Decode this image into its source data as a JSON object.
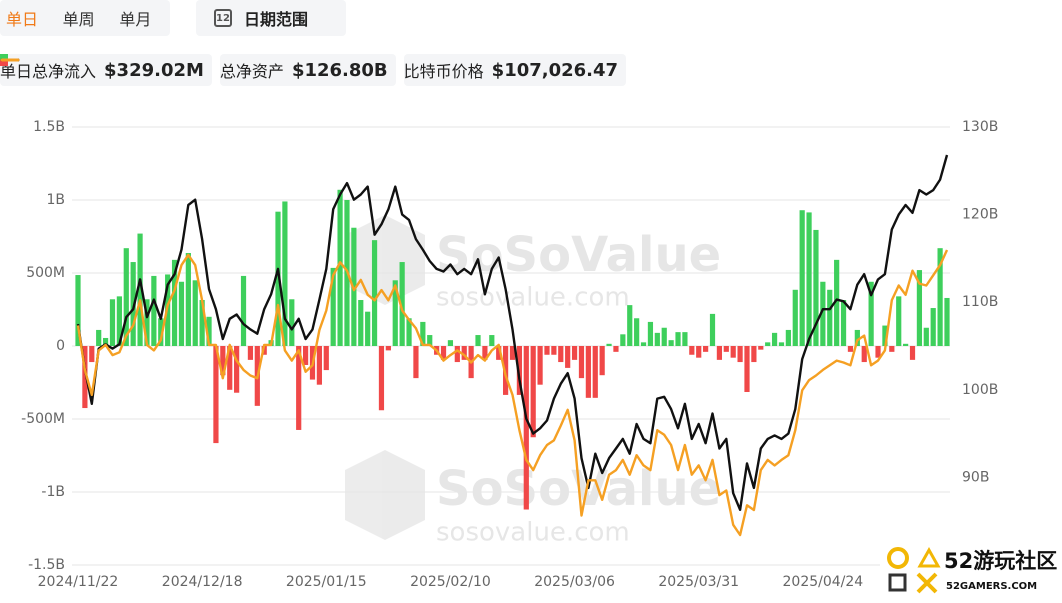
{
  "tabs": {
    "items": [
      "单日",
      "单周",
      "单月"
    ],
    "selected": 0,
    "range": "日期范围",
    "range_icon": "12"
  },
  "watermark": {
    "brand": "SoSoValue",
    "site": "sosovalue.com"
  },
  "logo": {
    "name": "52游玩社区",
    "site": "52GAMERS.COM"
  },
  "chart_data": {
    "type": "bar",
    "categories": [
      "2024/11/22",
      null,
      null,
      null,
      null,
      null,
      null,
      null,
      null,
      null,
      null,
      null,
      null,
      null,
      null,
      null,
      null,
      null,
      "2024/12/18",
      null,
      null,
      null,
      null,
      null,
      null,
      null,
      null,
      null,
      null,
      null,
      null,
      null,
      null,
      null,
      null,
      null,
      "2025/01/15",
      null,
      null,
      null,
      null,
      null,
      null,
      null,
      null,
      null,
      null,
      null,
      null,
      null,
      null,
      null,
      null,
      null,
      "2025/02/10",
      null,
      null,
      null,
      null,
      null,
      null,
      null,
      null,
      null,
      null,
      null,
      null,
      null,
      null,
      null,
      null,
      null,
      "2025/03/06",
      null,
      null,
      null,
      null,
      null,
      null,
      null,
      null,
      null,
      null,
      null,
      null,
      null,
      null,
      null,
      null,
      null,
      "2025/03/31",
      null,
      null,
      null,
      null,
      null,
      null,
      null,
      null,
      null,
      null,
      null,
      null,
      null,
      null,
      null,
      null,
      null,
      "2025/04/24",
      null,
      null,
      null,
      null,
      null,
      null,
      null,
      null,
      null,
      null,
      null,
      null,
      null,
      null,
      null,
      null,
      null,
      null
    ],
    "ylim": [
      -1500,
      1500
    ],
    "yticks": [
      {
        "value": -1500,
        "label": "-1.5B"
      },
      {
        "value": -1000,
        "label": "-1B"
      },
      {
        "value": -500,
        "label": "-500M"
      },
      0,
      {
        "value": 500,
        "label": "500M"
      },
      {
        "value": 1000,
        "label": "1B"
      },
      {
        "value": 1500,
        "label": "1.5B"
      }
    ],
    "y2lim": [
      80,
      130
    ],
    "y2ticks": [
      {
        "value": 90,
        "label": "90B"
      },
      {
        "value": 100,
        "label": "100B"
      },
      {
        "value": 110,
        "label": "110B"
      },
      {
        "value": 120,
        "label": "120B"
      },
      {
        "value": 130,
        "label": "130B"
      }
    ],
    "grid": true,
    "series": [
      {
        "name": "单日总净流入",
        "type": "bar",
        "color": "#3ecf5c",
        "negative_color": "#f04848",
        "latest": "$329.02M",
        "values": [
          486,
          -425,
          -110,
          110,
          55,
          320,
          340,
          670,
          575,
          770,
          320,
          480,
          190,
          490,
          590,
          440,
          637,
          450,
          315,
          200,
          -665,
          -200,
          -300,
          -320,
          480,
          -95,
          -410,
          -60,
          40,
          920,
          990,
          320,
          -575,
          -130,
          -230,
          -265,
          -165,
          535,
          1070,
          1000,
          810,
          315,
          235,
          725,
          -440,
          -30,
          450,
          575,
          190,
          -220,
          165,
          75,
          -60,
          -95,
          40,
          -110,
          -95,
          -220,
          75,
          -95,
          75,
          -95,
          -335,
          -95,
          -335,
          -1120,
          -625,
          -265,
          -60,
          -60,
          -110,
          -150,
          -95,
          -220,
          -355,
          -355,
          -200,
          15,
          -40,
          80,
          280,
          190,
          25,
          165,
          90,
          125,
          40,
          95,
          95,
          -60,
          -80,
          -40,
          220,
          -95,
          -40,
          -80,
          -110,
          -315,
          -110,
          -25,
          25,
          90,
          25,
          110,
          385,
          930,
          915,
          795,
          440,
          385,
          590,
          315,
          -40,
          110,
          -110,
          440,
          -80,
          140,
          -40,
          340,
          15,
          -95,
          520,
          125,
          260,
          670,
          329.02
        ]
      },
      {
        "name": "总净资产",
        "type": "line",
        "axis": "y2",
        "color": "#111111",
        "latest": "$126.80B",
        "values": [
          107.5,
          102.4,
          98.4,
          104.7,
          105.2,
          104.7,
          105.2,
          108.3,
          109.2,
          112.6,
          108.3,
          110.3,
          108.1,
          112.0,
          113.2,
          116.0,
          121.1,
          121.7,
          117.2,
          111.5,
          109.2,
          105.8,
          108.1,
          108.6,
          107.5,
          106.9,
          106.4,
          109.2,
          110.9,
          113.8,
          108.1,
          106.9,
          108.1,
          105.8,
          106.9,
          110.3,
          113.8,
          120.6,
          122.3,
          123.6,
          121.7,
          122.3,
          123.2,
          117.7,
          118.9,
          120.6,
          123.2,
          120.0,
          119.4,
          117.2,
          116.0,
          114.7,
          113.8,
          113.5,
          114.3,
          113.2,
          113.8,
          113.2,
          114.9,
          110.9,
          113.8,
          115.1,
          111.5,
          106.9,
          101.2,
          96.7,
          95.0,
          95.6,
          96.5,
          99.0,
          100.7,
          101.9,
          99.0,
          92.2,
          88.8,
          92.7,
          90.5,
          92.2,
          93.3,
          94.4,
          92.7,
          96.1,
          94.4,
          93.9,
          99.0,
          99.2,
          97.8,
          95.6,
          98.4,
          94.4,
          96.1,
          93.9,
          97.3,
          93.3,
          94.4,
          88.2,
          86.3,
          91.6,
          88.8,
          93.3,
          94.4,
          94.8,
          94.4,
          95.0,
          97.8,
          103.5,
          105.8,
          107.5,
          109.2,
          109.2,
          110.3,
          110.1,
          109.2,
          112.0,
          113.2,
          110.8,
          112.6,
          113.2,
          118.3,
          120.0,
          121.1,
          120.2,
          122.8,
          122.3,
          122.8,
          124.0,
          126.8
        ]
      },
      {
        "name": "比特币价格",
        "type": "line",
        "axis": "price",
        "color": "#f5a023",
        "latest": "$107,026.47",
        "values": [
          98900,
          94100,
          91400,
          96200,
          96800,
          95700,
          96000,
          97800,
          98900,
          101600,
          96800,
          96200,
          97300,
          101100,
          102700,
          105400,
          106500,
          105400,
          101600,
          96800,
          96800,
          93200,
          96800,
          95100,
          94100,
          93500,
          93200,
          96800,
          96800,
          101100,
          96200,
          95100,
          96200,
          93900,
          94600,
          98400,
          100500,
          104300,
          105700,
          104800,
          102700,
          103800,
          102200,
          101600,
          102700,
          101600,
          103200,
          100500,
          99500,
          98600,
          96800,
          96800,
          96200,
          95100,
          95700,
          96200,
          95700,
          94900,
          95700,
          95100,
          96200,
          96800,
          93500,
          91400,
          87600,
          84400,
          83300,
          84900,
          86000,
          86500,
          88100,
          89800,
          86500,
          78400,
          82200,
          82200,
          80100,
          82800,
          83300,
          84400,
          82800,
          84900,
          83800,
          83300,
          87600,
          87100,
          86000,
          83300,
          86000,
          82800,
          83800,
          82200,
          84400,
          80600,
          81100,
          77400,
          76300,
          79500,
          79000,
          83300,
          84400,
          83800,
          84400,
          84900,
          87600,
          91900,
          93000,
          93500,
          94100,
          94600,
          95100,
          94900,
          94600,
          97300,
          97800,
          94600,
          95100,
          96200,
          101600,
          103200,
          102200,
          104800,
          103400,
          103200,
          104300,
          105400,
          107026.47
        ]
      }
    ]
  }
}
